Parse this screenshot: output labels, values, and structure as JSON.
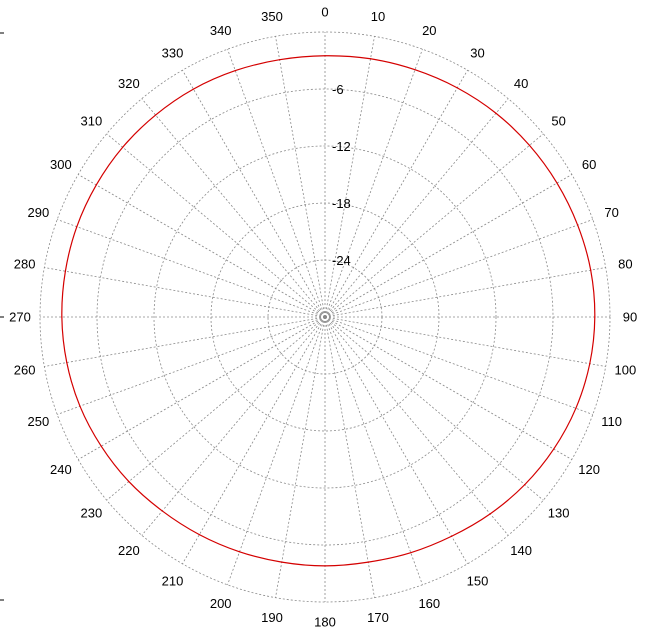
{
  "chart_data": {
    "type": "polar-line",
    "title": "",
    "radial_axis": {
      "min": -30,
      "max": 0,
      "rings": [
        0,
        -6,
        -12,
        -18,
        -24
      ],
      "ring_labels": [
        "-6",
        "-12",
        "-18",
        "-24"
      ]
    },
    "angular_axis": {
      "direction": "clockwise",
      "zero": "top",
      "step_deg": 10,
      "tick_labels": [
        "0",
        "10",
        "20",
        "30",
        "40",
        "50",
        "60",
        "70",
        "80",
        "90",
        "100",
        "110",
        "120",
        "130",
        "140",
        "150",
        "160",
        "170",
        "180",
        "190",
        "200",
        "210",
        "220",
        "230",
        "240",
        "250",
        "260",
        "270",
        "280",
        "290",
        "300",
        "310",
        "320",
        "330",
        "340",
        "350"
      ]
    },
    "grid": true,
    "colors": {
      "grid": "#8a8a8a",
      "series": "#d40000"
    },
    "series": [
      {
        "angles_deg": [
          0,
          10,
          20,
          30,
          40,
          50,
          60,
          70,
          80,
          90,
          100,
          110,
          120,
          130,
          140,
          150,
          160,
          170,
          180,
          190,
          200,
          210,
          220,
          230,
          240,
          250,
          260,
          270,
          280,
          290,
          300,
          310,
          320,
          330,
          340,
          350
        ],
        "values": [
          -2.5,
          -2.4,
          -2.3,
          -2.15,
          -2.0,
          -1.9,
          -1.8,
          -1.7,
          -1.6,
          -1.6,
          -1.7,
          -1.9,
          -2.2,
          -2.55,
          -2.95,
          -3.35,
          -3.6,
          -3.8,
          -3.8,
          -3.8,
          -3.7,
          -3.55,
          -3.35,
          -3.05,
          -2.8,
          -2.55,
          -2.4,
          -2.3,
          -2.25,
          -2.2,
          -2.2,
          -2.2,
          -2.25,
          -2.3,
          -2.4,
          -2.5
        ]
      }
    ]
  }
}
